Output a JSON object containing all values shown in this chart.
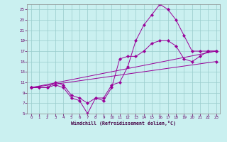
{
  "xlabel": "Windchill (Refroidissement éolien,°C)",
  "bg_color": "#caf0f0",
  "line_color": "#990099",
  "grid_color": "#99cccc",
  "xlim": [
    -0.5,
    23.5
  ],
  "ylim": [
    5,
    26
  ],
  "xticks": [
    0,
    1,
    2,
    3,
    4,
    5,
    6,
    7,
    8,
    9,
    10,
    11,
    12,
    13,
    14,
    15,
    16,
    17,
    18,
    19,
    20,
    21,
    22,
    23
  ],
  "yticks": [
    5,
    7,
    9,
    11,
    13,
    15,
    17,
    19,
    21,
    23,
    25
  ],
  "curve1_x": [
    0,
    1,
    2,
    3,
    4,
    5,
    6,
    7,
    8,
    9,
    10,
    11,
    12,
    13,
    14,
    15,
    16,
    17,
    18,
    19,
    20,
    21,
    22,
    23
  ],
  "curve1_y": [
    10,
    10,
    10,
    10.5,
    10,
    8,
    7.5,
    5,
    8,
    7.5,
    10,
    15.5,
    16,
    16,
    17,
    18.5,
    19,
    19,
    18,
    15.5,
    15,
    16,
    17,
    17
  ],
  "curve2_x": [
    0,
    1,
    2,
    3,
    4,
    5,
    6,
    7,
    8,
    9,
    10,
    11,
    12,
    13,
    14,
    15,
    16,
    17,
    18,
    19,
    20,
    21,
    22,
    23
  ],
  "curve2_y": [
    10,
    10,
    10,
    11,
    10.5,
    8.5,
    8,
    7,
    8,
    8,
    10.5,
    11,
    14,
    19,
    22,
    24,
    26,
    25,
    23,
    20,
    17,
    17,
    17,
    17
  ],
  "line1_x": [
    0,
    23
  ],
  "line1_y": [
    10,
    17
  ],
  "line2_x": [
    0,
    23
  ],
  "line2_y": [
    10,
    15
  ]
}
